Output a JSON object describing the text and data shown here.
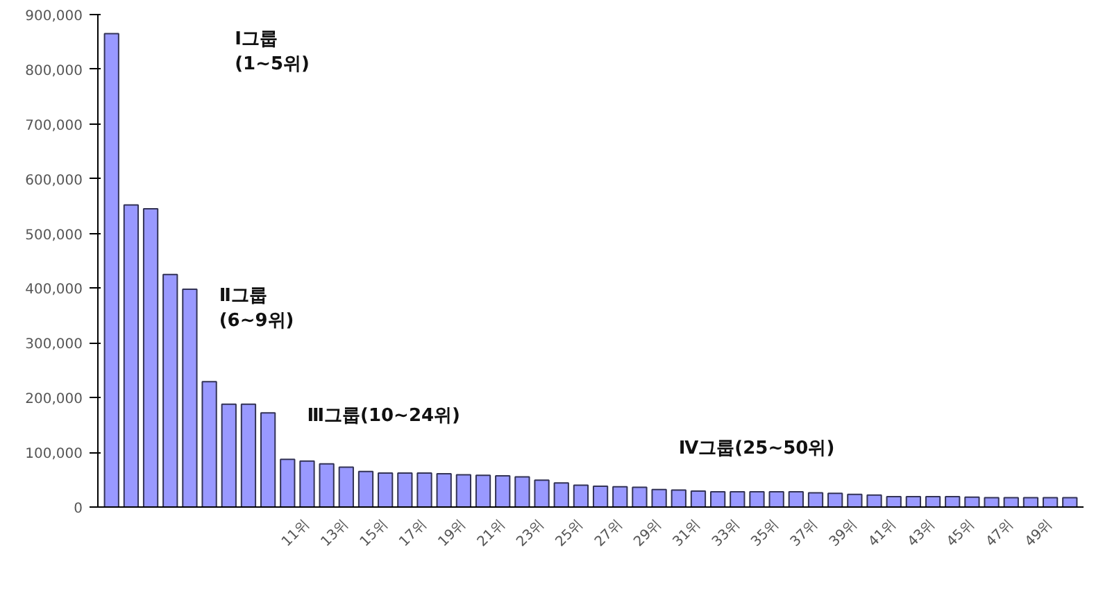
{
  "chart_data": {
    "type": "bar",
    "categories": [
      null,
      null,
      null,
      null,
      null,
      null,
      null,
      null,
      null,
      null,
      "11위",
      null,
      "13위",
      null,
      "15위",
      null,
      "17위",
      null,
      "19위",
      null,
      "21위",
      null,
      "23위",
      null,
      "25위",
      null,
      "27위",
      null,
      "29위",
      null,
      "31위",
      null,
      "33위",
      null,
      "35위",
      null,
      "37위",
      null,
      "39위",
      null,
      "41위",
      null,
      "43위",
      null,
      "45위",
      null,
      "47위",
      null,
      "49위",
      null
    ],
    "values": [
      865000,
      552000,
      545000,
      425000,
      398000,
      229000,
      188000,
      188000,
      172000,
      87000,
      84000,
      79000,
      73000,
      65000,
      62000,
      62000,
      62000,
      61000,
      59000,
      58000,
      57000,
      55000,
      49000,
      44000,
      40000,
      38000,
      37000,
      36000,
      32000,
      31000,
      29000,
      28000,
      28000,
      28000,
      28000,
      28000,
      26000,
      25000,
      23000,
      22000,
      19000,
      19000,
      19000,
      19000,
      18000,
      17000,
      17000,
      17000,
      17000,
      17000
    ],
    "color": "#9999ff",
    "ylim": [
      0,
      900000
    ],
    "yticks": [
      {
        "value": 0,
        "label": "0"
      },
      {
        "value": 100000,
        "label": "100,000"
      },
      {
        "value": 200000,
        "label": "200,000"
      },
      {
        "value": 300000,
        "label": "300,000"
      },
      {
        "value": 400000,
        "label": "400,000"
      },
      {
        "value": 500000,
        "label": "500,000"
      },
      {
        "value": 600000,
        "label": "600,000"
      },
      {
        "value": 700000,
        "label": "700,000"
      },
      {
        "value": 800000,
        "label": "800,000"
      },
      {
        "value": 900000,
        "label": "900,000"
      }
    ],
    "annotations": [
      "Ⅰ그룹\n(1~5위)",
      "Ⅱ그룹\n(6~9위)",
      "Ⅲ그룹(10~24위)",
      "Ⅳ그룹(25~50위)"
    ],
    "grid": false
  }
}
